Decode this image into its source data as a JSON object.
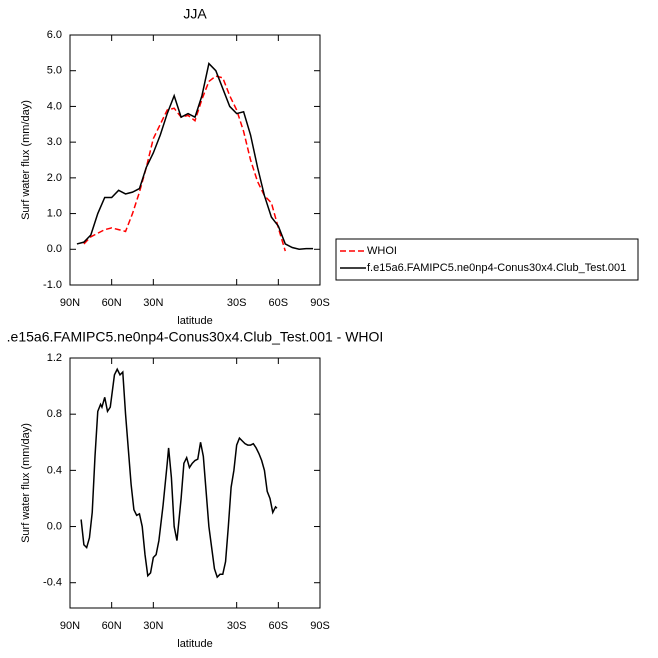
{
  "chart_data": [
    {
      "type": "line",
      "title": "JJA",
      "xlabel": "latitude",
      "ylabel": "Surf water flux (mm/day)",
      "x": [
        85,
        80,
        75,
        70,
        65,
        60,
        55,
        50,
        45,
        40,
        35,
        30,
        25,
        20,
        15,
        10,
        5,
        0,
        -5,
        -10,
        -15,
        -20,
        -25,
        -30,
        -35,
        -40,
        -45,
        -50,
        -55,
        -60,
        -65,
        -70,
        -75,
        -80,
        -85
      ],
      "series": [
        {
          "name": "WHOI",
          "color": "#ff0000",
          "dash": true,
          "values": [
            null,
            0.15,
            0.35,
            0.45,
            0.55,
            0.6,
            0.55,
            0.5,
            1.0,
            1.6,
            2.3,
            3.1,
            3.5,
            3.9,
            3.95,
            3.7,
            3.75,
            3.6,
            4.2,
            4.7,
            4.85,
            4.8,
            4.3,
            3.9,
            3.3,
            2.5,
            1.9,
            1.5,
            1.3,
            0.6,
            -0.05,
            null,
            null,
            null,
            null
          ]
        },
        {
          "name": "f.e15a6.FAMIPC5.ne0np4-Conus30x4.Club_Test.001",
          "color": "#000000",
          "dash": false,
          "values": [
            0.15,
            0.2,
            0.4,
            1.0,
            1.45,
            1.45,
            1.65,
            1.55,
            1.6,
            1.7,
            2.3,
            2.7,
            3.2,
            3.8,
            4.3,
            3.7,
            3.8,
            3.7,
            4.3,
            5.2,
            5.0,
            4.5,
            4.0,
            3.8,
            3.85,
            3.2,
            2.3,
            1.5,
            0.9,
            0.65,
            0.15,
            0.05,
            0.0,
            0.02,
            0.02
          ]
        }
      ],
      "xlim": [
        90,
        -90
      ],
      "xticks": [
        {
          "value": 90,
          "label": "90N"
        },
        {
          "value": 60,
          "label": "60N"
        },
        {
          "value": 30,
          "label": "30N"
        },
        {
          "value": -30,
          "label": "30S"
        },
        {
          "value": -60,
          "label": "60S"
        },
        {
          "value": -90,
          "label": "90S"
        }
      ],
      "ylim": [
        -1,
        6
      ],
      "yticks": [
        {
          "value": 6,
          "label": "6.0"
        },
        {
          "value": 5,
          "label": "5.0"
        },
        {
          "value": 4,
          "label": "4.0"
        },
        {
          "value": 3,
          "label": "3.0"
        },
        {
          "value": 2,
          "label": "2.0"
        },
        {
          "value": 1,
          "label": "1.0"
        },
        {
          "value": 0,
          "label": "0.0"
        },
        {
          "value": -1,
          "label": "-1.0"
        }
      ],
      "legend": "right"
    },
    {
      "type": "line",
      "title": ".e15a6.FAMIPC5.ne0np4-Conus30x4.Club_Test.001 - WHOI",
      "xlabel": "latitude",
      "ylabel": "Surf water flux (mm/day)",
      "x": [
        82,
        80,
        78,
        76,
        74,
        72,
        70,
        68,
        67,
        65,
        63,
        61,
        58,
        56,
        54,
        52,
        50,
        48,
        46,
        44,
        42,
        40,
        38,
        36,
        34,
        32,
        30,
        28,
        26,
        23,
        20,
        19,
        17,
        15,
        13,
        10,
        8,
        6,
        4,
        2,
        0,
        -2,
        -4,
        -6,
        -8,
        -10,
        -12,
        -14,
        -16,
        -18,
        -20,
        -22,
        -24,
        -26,
        -28,
        -30,
        -32,
        -34,
        -36,
        -38,
        -40,
        -42,
        -44,
        -46,
        -48,
        -50,
        -52,
        -54,
        -56,
        -58,
        -59
      ],
      "values": [
        0.05,
        -0.13,
        -0.15,
        -0.08,
        0.1,
        0.5,
        0.82,
        0.87,
        0.85,
        0.92,
        0.82,
        0.85,
        1.08,
        1.12,
        1.08,
        1.1,
        0.8,
        0.55,
        0.3,
        0.12,
        0.08,
        0.09,
        0.0,
        -0.2,
        -0.35,
        -0.33,
        -0.22,
        -0.2,
        -0.1,
        0.15,
        0.45,
        0.56,
        0.35,
        0.0,
        -0.1,
        0.2,
        0.45,
        0.49,
        0.42,
        0.45,
        0.47,
        0.48,
        0.6,
        0.5,
        0.25,
        0.0,
        -0.15,
        -0.3,
        -0.36,
        -0.34,
        -0.34,
        -0.25,
        0.0,
        0.28,
        0.4,
        0.58,
        0.63,
        0.61,
        0.59,
        0.58,
        0.58,
        0.59,
        0.56,
        0.52,
        0.47,
        0.4,
        0.25,
        0.2,
        0.1,
        0.14,
        0.13
      ],
      "color": "#000000",
      "xlim": [
        90,
        -90
      ],
      "xticks": [
        {
          "value": 90,
          "label": "90N"
        },
        {
          "value": 60,
          "label": "60N"
        },
        {
          "value": 30,
          "label": "30N"
        },
        {
          "value": -30,
          "label": "30S"
        },
        {
          "value": -60,
          "label": "60S"
        },
        {
          "value": -90,
          "label": "90S"
        }
      ],
      "ylim": [
        -0.58,
        1.2
      ],
      "yticks": [
        {
          "value": 1.2,
          "label": "1.2"
        },
        {
          "value": 0.8,
          "label": "0.8"
        },
        {
          "value": 0.4,
          "label": "0.4"
        },
        {
          "value": 0,
          "label": "0.0"
        },
        {
          "value": -0.4,
          "label": "-0.4"
        }
      ]
    }
  ]
}
